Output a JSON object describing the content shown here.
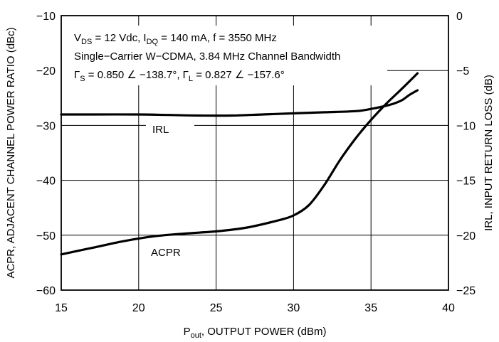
{
  "chart_data": {
    "type": "line",
    "xlabel": "P",
    "xlabel_sub": "out",
    "xlabel_rest": ", OUTPUT POWER (dBm)",
    "ylabel": "ACPR, ADJACENT CHANNEL POWER RATIO (dBc)",
    "y2label": "IRL,  INPUT RETURN LOSS (dB)",
    "xlim": [
      15,
      40
    ],
    "ylim": [
      -60,
      -10
    ],
    "y2lim": [
      -25,
      0
    ],
    "xticks": [
      "15",
      "20",
      "25",
      "30",
      "35",
      "40"
    ],
    "yticks": [
      "−10",
      "−20",
      "−30",
      "−40",
      "−50",
      "−60"
    ],
    "y2ticks": [
      "0",
      "−5",
      "−10",
      "−15",
      "−20",
      "−25"
    ],
    "grid": true,
    "conditions": {
      "line1": {
        "p1": "V",
        "s1": "DS",
        "p2": " = 12 Vdc, I",
        "s2": "DQ",
        "p3": " = 140 mA, f = 3550 MHz"
      },
      "line2": "Single−Carrier W−CDMA, 3.84 MHz Channel Bandwidth",
      "line3": {
        "p1": "Γ",
        "s1": "S",
        "p2": " = 0.850 ∠ −138.7°, Γ",
        "s2": "L",
        "p3": " = 0.827 ∠ −157.6°"
      }
    },
    "series": [
      {
        "name": "IRL",
        "axis": "right",
        "x": [
          15,
          17,
          20,
          22,
          24,
          26,
          28,
          30,
          32,
          34,
          35,
          36,
          36.5,
          37,
          37.5,
          38
        ],
        "y": [
          -9.0,
          -9.0,
          -9.0,
          -9.05,
          -9.1,
          -9.1,
          -9.0,
          -8.9,
          -8.8,
          -8.7,
          -8.5,
          -8.2,
          -8.0,
          -7.7,
          -7.2,
          -6.8
        ]
      },
      {
        "name": "ACPR",
        "axis": "left",
        "x": [
          15,
          17,
          19,
          21,
          23,
          25,
          27,
          29,
          30,
          31,
          32,
          33,
          34,
          35,
          36,
          37,
          38
        ],
        "y": [
          -53.5,
          -52.3,
          -51.1,
          -50.2,
          -49.7,
          -49.3,
          -48.6,
          -47.3,
          -46.4,
          -44.5,
          -40.8,
          -36.3,
          -32.4,
          -29.0,
          -26.0,
          -23.3,
          -20.5
        ]
      }
    ]
  }
}
